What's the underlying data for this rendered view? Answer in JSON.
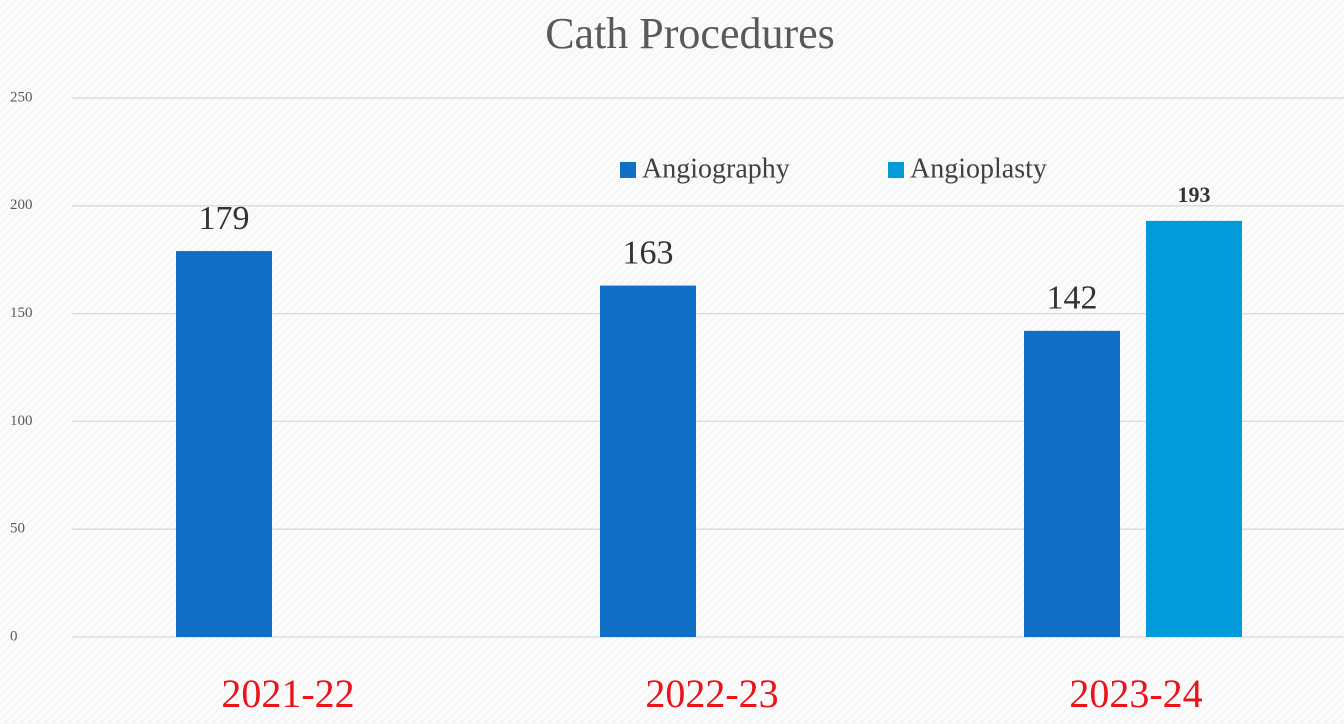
{
  "chart_data": {
    "type": "bar",
    "title": "Cath Procedures",
    "categories": [
      "2021-22",
      "2022-23",
      "2023-24"
    ],
    "series": [
      {
        "name": "Angiography",
        "color": "#1170c6",
        "values": [
          179,
          163,
          142
        ]
      },
      {
        "name": "Angioplasty",
        "color": "#009bd8",
        "values": [
          null,
          null,
          193
        ]
      }
    ],
    "ylim": [
      0,
      250
    ],
    "yticks": [
      0,
      50,
      100,
      150,
      200,
      250
    ],
    "grid": true,
    "legend": "top"
  }
}
